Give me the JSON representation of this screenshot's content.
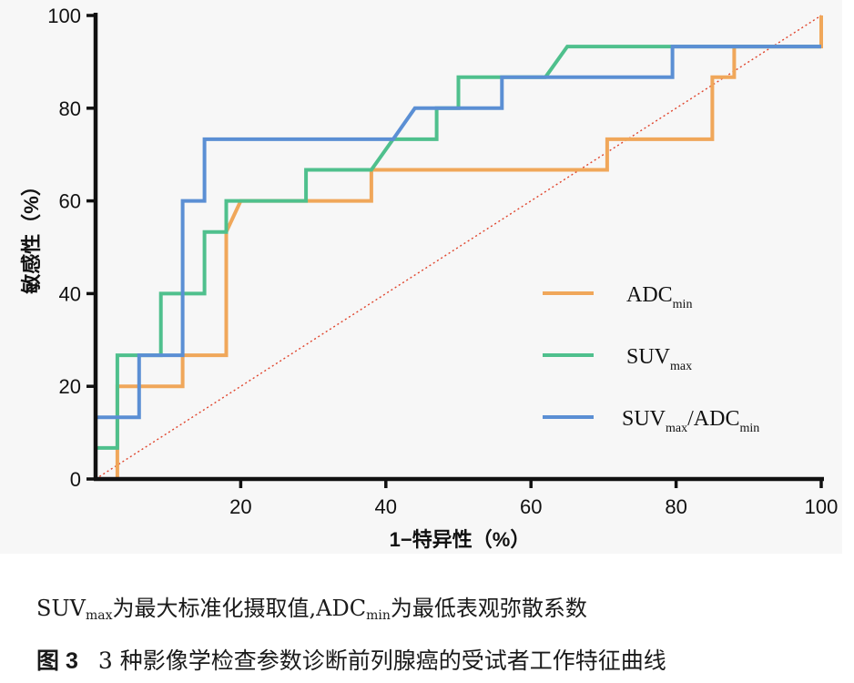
{
  "chart_data": {
    "type": "line",
    "subtype": "roc-step",
    "xlabel": "1−特异性（%）",
    "ylabel": "敏感性（%）",
    "xlim": [
      0,
      100
    ],
    "ylim": [
      0,
      100
    ],
    "xticks": [
      "20",
      "40",
      "60",
      "80",
      "100"
    ],
    "yticks": [
      "0",
      "20",
      "40",
      "60",
      "80",
      "100"
    ],
    "legend_position": "center-right",
    "reference_line": {
      "x": [
        0,
        100
      ],
      "y": [
        0,
        100
      ],
      "color": "#e0442c",
      "style": "dotted"
    },
    "series": [
      {
        "name": "ADC",
        "name_sub": "min",
        "color": "#f0a75a",
        "x": [
          0,
          3,
          3,
          12,
          12,
          18,
          18,
          20,
          38,
          38,
          70.5,
          70.5,
          85,
          85,
          88,
          88,
          100,
          100
        ],
        "y": [
          0,
          0,
          20,
          20,
          26.7,
          26.7,
          53.3,
          60,
          60,
          66.7,
          66.7,
          73.3,
          73.3,
          86.7,
          86.7,
          93.3,
          93.3,
          100
        ]
      },
      {
        "name": "SUV",
        "name_sub": "max",
        "color": "#4fc08d",
        "x": [
          0,
          0,
          3,
          3,
          9,
          9,
          15,
          15,
          18,
          18,
          29,
          29,
          38,
          41,
          47,
          47,
          50,
          50,
          62,
          65,
          100
        ],
        "y": [
          0,
          6.7,
          6.7,
          26.7,
          26.7,
          40,
          40,
          53.3,
          53.3,
          60,
          60,
          66.7,
          66.7,
          73.3,
          73.3,
          80,
          80,
          86.7,
          86.7,
          93.3,
          93.3
        ]
      },
      {
        "name": "SUV",
        "name_sub": "max",
        "name_mid": "/ADC",
        "name_sub2": "min",
        "color": "#5b8fd4",
        "x": [
          0,
          0,
          6,
          6,
          12,
          12,
          15,
          15,
          41,
          44,
          44,
          56,
          56,
          79.5,
          79.5,
          100
        ],
        "y": [
          0,
          13.3,
          13.3,
          26.7,
          26.7,
          60,
          60,
          73.3,
          73.3,
          80,
          80,
          80,
          86.7,
          86.7,
          93.3,
          93.3
        ]
      }
    ]
  },
  "caption": {
    "note_part1": "SUV",
    "note_sub1": "max",
    "note_part2": "为最大标准化摄取值,ADC",
    "note_sub2": "min",
    "note_part3": "为最低表观弥散系数",
    "figure_label": "图 3",
    "title": "3 种影像学检查参数诊断前列腺癌的受试者工作特征曲线"
  }
}
